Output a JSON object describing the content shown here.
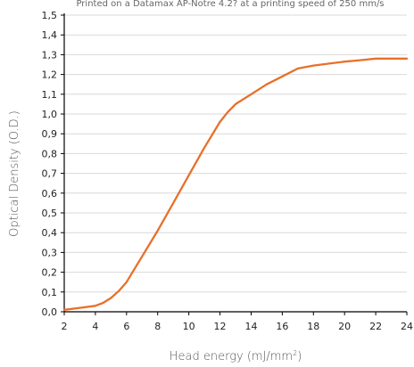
{
  "chart_data": {
    "type": "line",
    "title": "Printed on a Datamax AP-Notre 4.2? at a printing speed of 250 mm/s",
    "xlabel": "Head energy (mJ/mm",
    "xlabel_sup": "2",
    "xlabel_close": ")",
    "ylabel": "Optical Density (O.D.)",
    "xlim": [
      2,
      24
    ],
    "ylim": [
      0.0,
      1.5
    ],
    "x_ticks": [
      2,
      4,
      6,
      8,
      10,
      12,
      14,
      16,
      18,
      20,
      22,
      24
    ],
    "x_tick_labels": [
      "2",
      "4",
      "6",
      "8",
      "10",
      "12",
      "14",
      "16",
      "18",
      "20",
      "22",
      "24"
    ],
    "y_ticks": [
      0.0,
      0.1,
      0.2,
      0.3,
      0.4,
      0.5,
      0.6,
      0.7,
      0.8,
      0.9,
      1.0,
      1.1,
      1.2,
      1.3,
      1.4,
      1.5
    ],
    "y_tick_labels": [
      "0,0",
      "0,1",
      "0,2",
      "0,3",
      "0,4",
      "0,5",
      "0,6",
      "0,7",
      "0,8",
      "0,9",
      "1,0",
      "1,1",
      "1,2",
      "1,3",
      "1,4",
      "1,5"
    ],
    "grid": true,
    "series": [
      {
        "color": "#e8702a",
        "x": [
          2,
          3,
          4,
          4.5,
          5,
          5.5,
          6,
          7,
          8,
          9,
          10,
          11,
          12,
          12.5,
          13,
          14,
          15,
          16,
          17,
          18,
          19,
          20,
          21,
          22,
          23,
          24
        ],
        "y": [
          0.01,
          0.02,
          0.03,
          0.045,
          0.07,
          0.105,
          0.15,
          0.28,
          0.41,
          0.55,
          0.69,
          0.83,
          0.96,
          1.01,
          1.05,
          1.1,
          1.15,
          1.19,
          1.23,
          1.245,
          1.255,
          1.265,
          1.272,
          1.28,
          1.28,
          1.28
        ]
      }
    ]
  }
}
